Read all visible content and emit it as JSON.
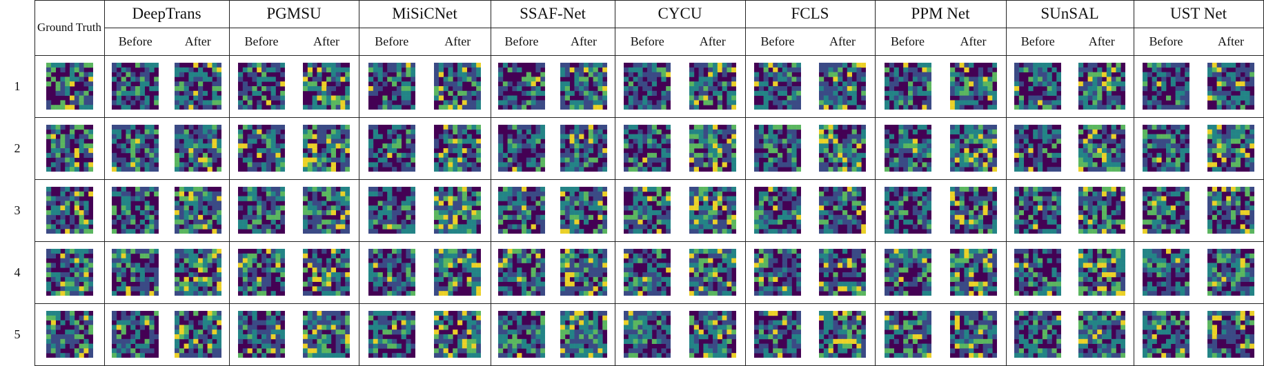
{
  "header": {
    "ground_truth": "Ground Truth",
    "methods": [
      "DeepTrans",
      "PGMSU",
      "MiSiCNet",
      "SSAF-Net",
      "CYCU",
      "FCLS",
      "PPM Net",
      "SUnSAL",
      "UST Net"
    ],
    "sub_before": "Before",
    "sub_after": "After"
  },
  "rows": [
    "1",
    "2",
    "3",
    "4",
    "5"
  ],
  "colormap": [
    "#440154",
    "#3b528b",
    "#21918c",
    "#5ec962",
    "#fde725"
  ]
}
